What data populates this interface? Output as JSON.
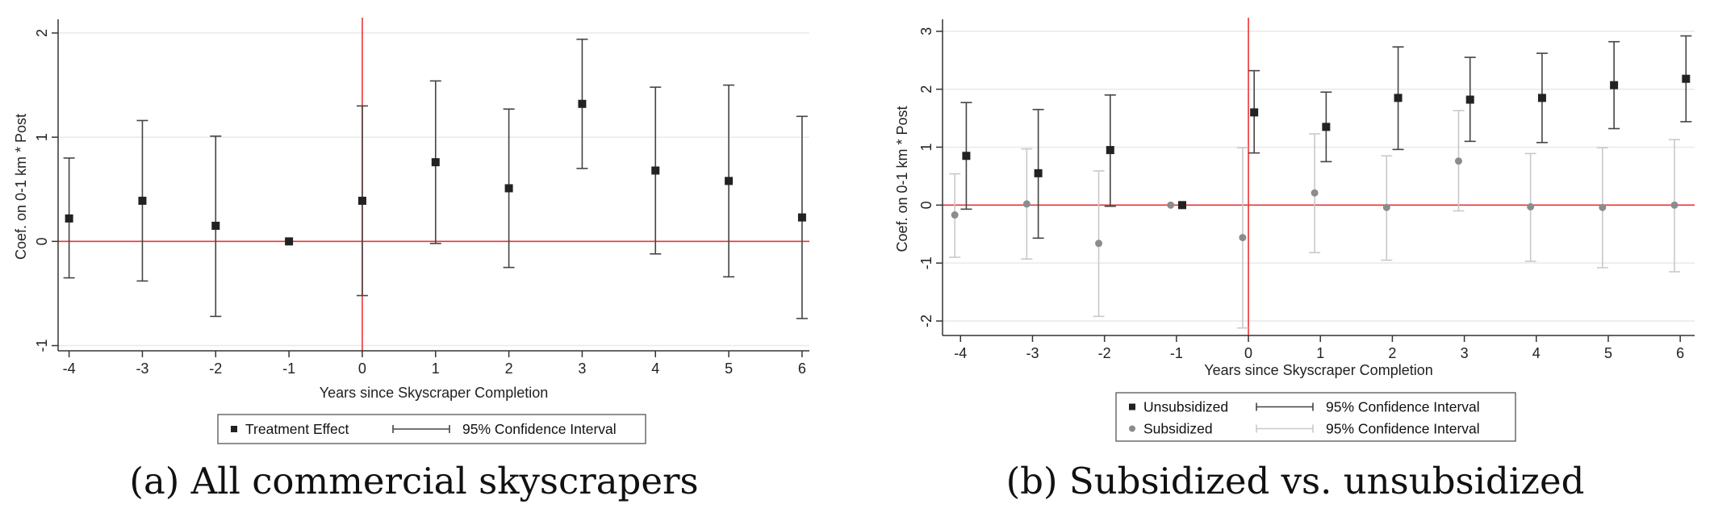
{
  "colors": {
    "reference_line": "#ee3333",
    "gridline": "#e9e9e9",
    "axis": "#333333",
    "unsubsidized": "#222222",
    "unsubsidized_ci": "#444444",
    "subsidized": "#8c8c8c",
    "subsidized_ci": "#c9c9c9",
    "treatment": "#222222",
    "treatment_ci": "#444444"
  },
  "chart_data": [
    {
      "type": "scatter",
      "caption": "(a) All commercial skyscrapers",
      "xlabel": "Years since Skyscraper Completion",
      "ylabel": "Coef. on 0-1 km * Post",
      "xlim": [
        -4.15,
        6.1
      ],
      "ylim": [
        -1.05,
        2.1
      ],
      "x_ticks": [
        -4,
        -3,
        -2,
        -1,
        0,
        1,
        2,
        3,
        4,
        5,
        6
      ],
      "y_ticks": [
        -1,
        0,
        1,
        2
      ],
      "grid": true,
      "reference_lines": {
        "x": 0,
        "y": 0
      },
      "legend": {
        "position": "bottom",
        "entries": [
          {
            "label": "Treatment Effect",
            "kind": "marker",
            "series": 0
          },
          {
            "label": "95% Confidence Interval",
            "kind": "ci",
            "series": 0
          }
        ]
      },
      "series": [
        {
          "name": "Treatment Effect",
          "marker": "square",
          "color_key": "treatment",
          "ci_color_key": "treatment_ci",
          "offset": 0,
          "x": [
            -4,
            -3,
            -2,
            -1,
            0,
            1,
            2,
            3,
            4,
            5,
            6
          ],
          "y": [
            0.22,
            0.39,
            0.15,
            0.0,
            0.39,
            0.76,
            0.51,
            1.32,
            0.68,
            0.58,
            0.23
          ],
          "ci_low": [
            -0.35,
            -0.38,
            -0.72,
            0.0,
            -0.52,
            -0.02,
            -0.25,
            0.7,
            -0.12,
            -0.34,
            -0.74
          ],
          "ci_high": [
            0.8,
            1.16,
            1.01,
            0.0,
            1.3,
            1.54,
            1.27,
            1.94,
            1.48,
            1.5,
            1.2
          ]
        }
      ]
    },
    {
      "type": "scatter",
      "caption": "(b) Subsidized vs. unsubsidized",
      "xlabel": "Years since Skyscraper Completion",
      "ylabel": "Coef. on 0-1 km * Post",
      "xlim": [
        -4.25,
        6.2
      ],
      "ylim": [
        -2.25,
        3.15
      ],
      "x_ticks": [
        -4,
        -3,
        -2,
        -1,
        0,
        1,
        2,
        3,
        4,
        5,
        6
      ],
      "y_ticks": [
        -2,
        -1,
        0,
        1,
        2,
        3
      ],
      "grid": true,
      "reference_lines": {
        "x": 0,
        "y": 0
      },
      "legend": {
        "position": "bottom",
        "entries": [
          {
            "label": "Unsubsidized",
            "kind": "marker",
            "series": 0
          },
          {
            "label": "95% Confidence Interval",
            "kind": "ci",
            "series": 0
          },
          {
            "label": "Subsidized",
            "kind": "marker",
            "series": 1
          },
          {
            "label": "95% Confidence Interval",
            "kind": "ci",
            "series": 1
          }
        ]
      },
      "series": [
        {
          "name": "Unsubsidized",
          "marker": "square",
          "color_key": "unsubsidized",
          "ci_color_key": "unsubsidized_ci",
          "offset": 0.08,
          "x": [
            -4,
            -3,
            -2,
            -1,
            0,
            1,
            2,
            3,
            4,
            5,
            6
          ],
          "y": [
            0.85,
            0.55,
            0.95,
            0.0,
            1.6,
            1.35,
            1.85,
            1.82,
            1.85,
            2.07,
            2.18
          ],
          "ci_low": [
            -0.07,
            -0.57,
            -0.02,
            0.0,
            0.9,
            0.75,
            0.96,
            1.1,
            1.08,
            1.32,
            1.44
          ],
          "ci_high": [
            1.77,
            1.65,
            1.9,
            0.0,
            2.32,
            1.95,
            2.73,
            2.55,
            2.62,
            2.82,
            2.92
          ]
        },
        {
          "name": "Subsidized",
          "marker": "circle",
          "color_key": "subsidized",
          "ci_color_key": "subsidized_ci",
          "offset": -0.08,
          "x": [
            -4,
            -3,
            -2,
            -1,
            0,
            1,
            2,
            3,
            4,
            5,
            6
          ],
          "y": [
            -0.17,
            0.02,
            -0.66,
            0.0,
            -0.56,
            0.21,
            -0.04,
            0.76,
            -0.03,
            -0.04,
            0.0
          ],
          "ci_low": [
            -0.9,
            -0.93,
            -1.92,
            0.0,
            -2.12,
            -0.82,
            -0.95,
            -0.1,
            -0.97,
            -1.08,
            -1.15
          ],
          "ci_high": [
            0.54,
            0.97,
            0.59,
            0.0,
            0.99,
            1.23,
            0.85,
            1.63,
            0.89,
            0.99,
            1.13
          ]
        }
      ]
    }
  ]
}
